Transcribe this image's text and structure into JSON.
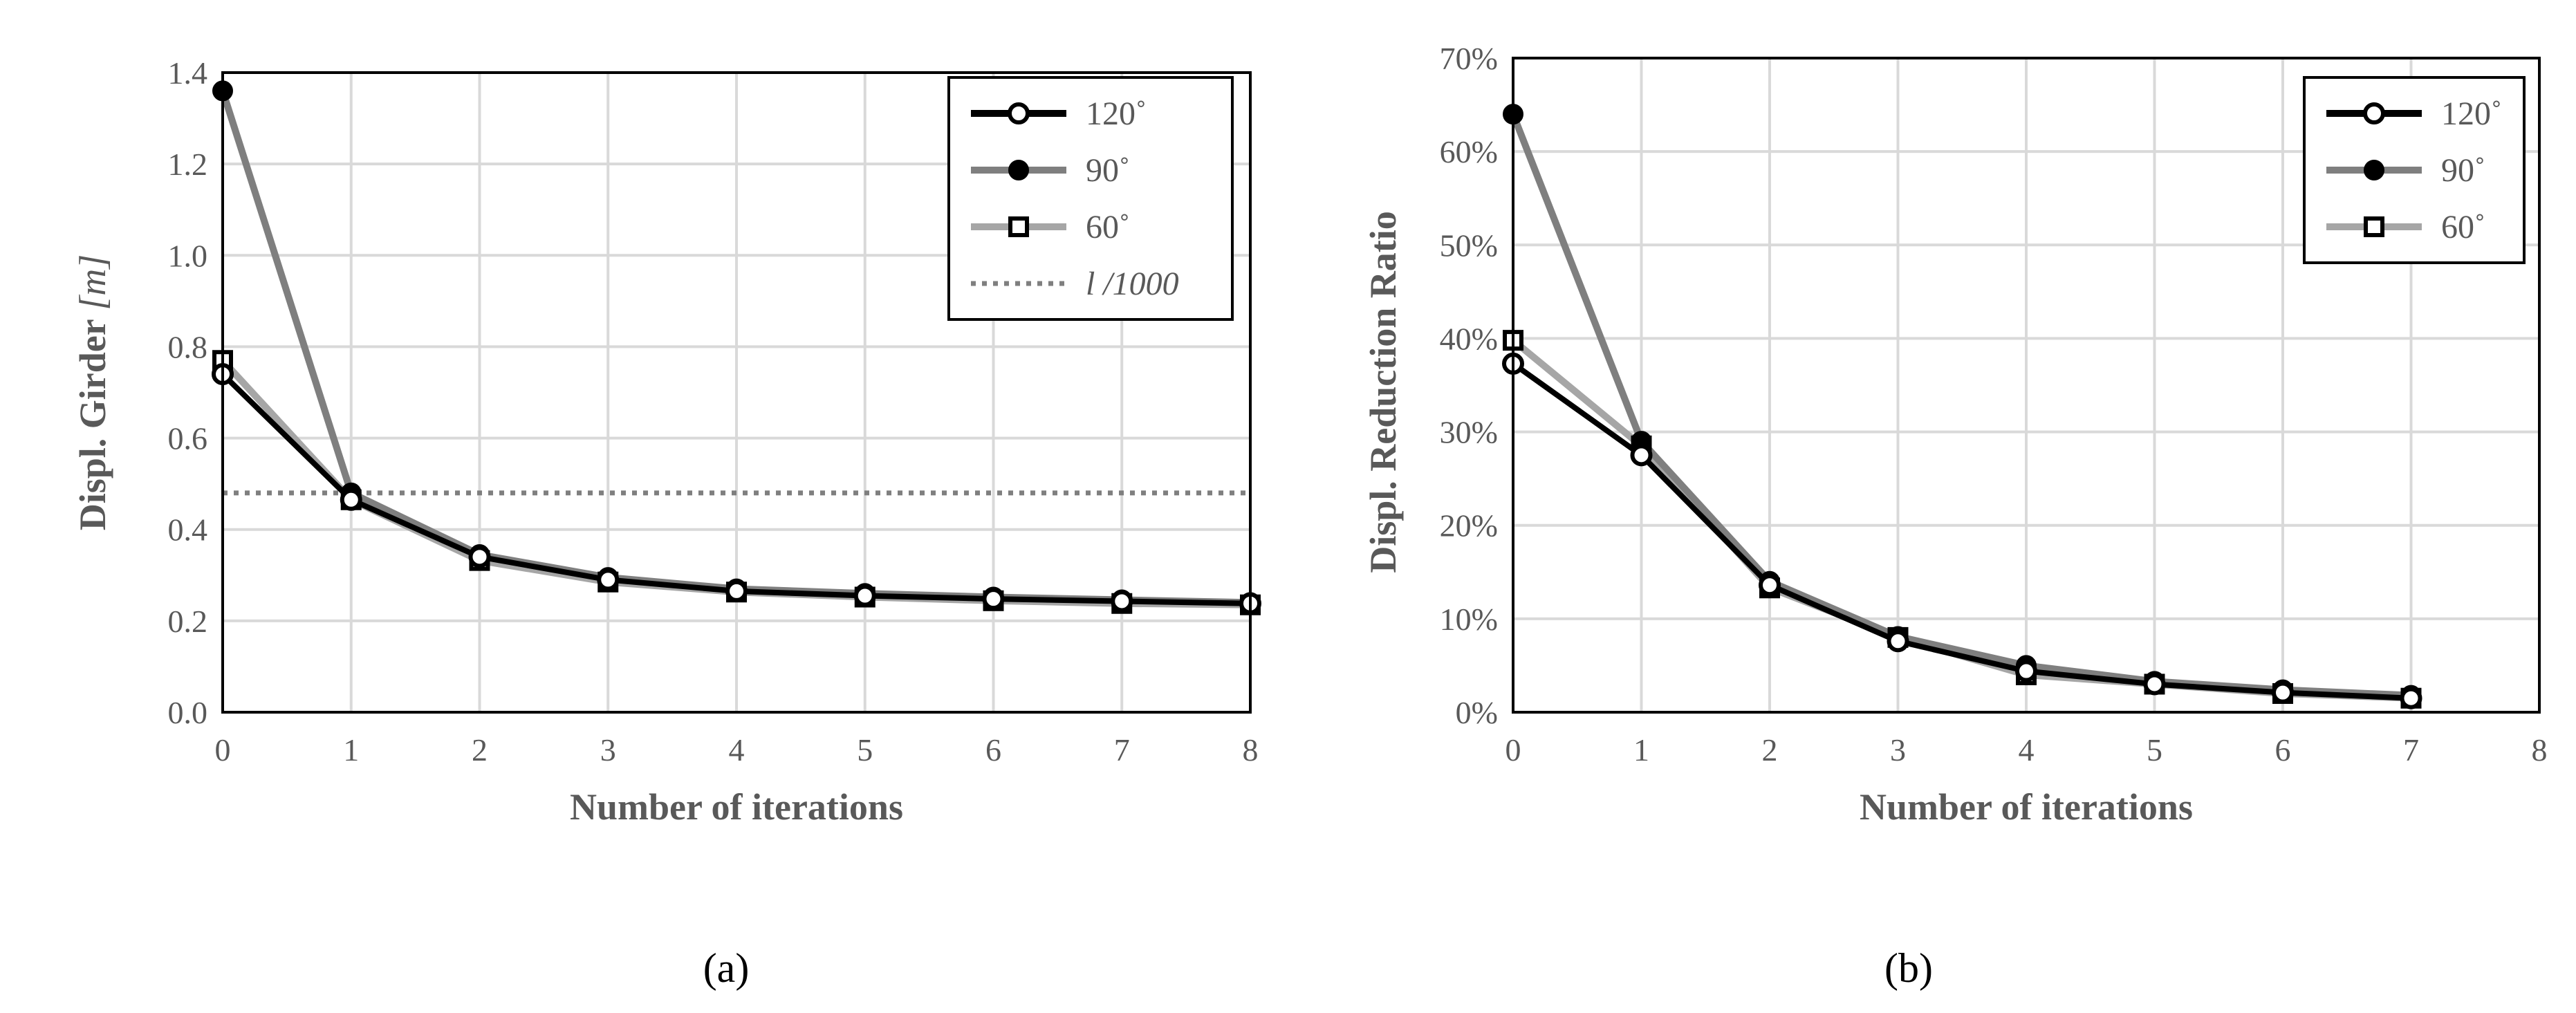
{
  "chart_data": [
    {
      "type": "line",
      "panel_label": "(a)",
      "xlabel": "Number of iterations",
      "ylabel_text": "Displ. Girder ",
      "ylabel_unit": "[m]",
      "xlim": [
        0,
        8
      ],
      "ylim": [
        0,
        1.4
      ],
      "xticks": [
        "0",
        "1",
        "2",
        "3",
        "4",
        "5",
        "6",
        "7",
        "8"
      ],
      "yticks": [
        "0.0",
        "0.2",
        "0.4",
        "0.6",
        "0.8",
        "1.0",
        "1.2",
        "1.4"
      ],
      "x": [
        0,
        1,
        2,
        3,
        4,
        5,
        6,
        7,
        8
      ],
      "grid": true,
      "legend_position": "top-right",
      "series": [
        {
          "name": "120˚",
          "color": "#000000",
          "marker": "open-circle",
          "values": [
            0.74,
            0.465,
            0.34,
            0.29,
            0.265,
            0.255,
            0.248,
            0.243,
            0.238
          ]
        },
        {
          "name": "90˚",
          "color": "#7f7f7f",
          "marker": "filled-circle",
          "values": [
            1.36,
            0.48,
            0.345,
            0.295,
            0.27,
            0.26,
            0.252,
            0.246,
            0.24
          ]
        },
        {
          "name": "60˚",
          "color": "#a6a6a6",
          "marker": "open-square",
          "values": [
            0.77,
            0.465,
            0.332,
            0.285,
            0.263,
            0.252,
            0.244,
            0.238,
            0.235
          ]
        }
      ],
      "reference_line": {
        "name": "l /1000",
        "value": 0.48,
        "color": "#7f7f7f",
        "style": "dotted"
      }
    },
    {
      "type": "line",
      "panel_label": "(b)",
      "xlabel": "Number of iterations",
      "ylabel": "Displ. Reduction Ratio",
      "xlim": [
        0,
        8
      ],
      "ylim": [
        0,
        70
      ],
      "xticks": [
        "0",
        "1",
        "2",
        "3",
        "4",
        "5",
        "6",
        "7",
        "8"
      ],
      "yticks": [
        "0%",
        "10%",
        "20%",
        "30%",
        "40%",
        "50%",
        "60%",
        "70%"
      ],
      "x": [
        0,
        1,
        2,
        3,
        4,
        5,
        6,
        7
      ],
      "grid": true,
      "legend_position": "top-right",
      "series": [
        {
          "name": "120˚",
          "color": "#000000",
          "marker": "open-circle",
          "values": [
            37.3,
            27.5,
            13.6,
            7.6,
            4.4,
            3.0,
            2.1,
            1.5
          ]
        },
        {
          "name": "90˚",
          "color": "#7f7f7f",
          "marker": "filled-circle",
          "values": [
            64.0,
            29.0,
            14.0,
            8.1,
            5.0,
            3.3,
            2.4,
            1.8
          ]
        },
        {
          "name": "60˚",
          "color": "#a6a6a6",
          "marker": "open-square",
          "values": [
            39.8,
            28.5,
            13.3,
            8.0,
            4.0,
            3.0,
            2.0,
            1.5
          ]
        }
      ]
    }
  ]
}
